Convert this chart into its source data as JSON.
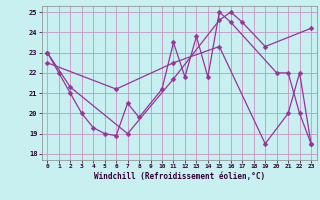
{
  "xlabel": "Windchill (Refroidissement éolien,°C)",
  "background_color": "#c8f0f0",
  "grid_color": "#c8a0c8",
  "line_color": "#993399",
  "x_min": 0,
  "x_max": 23,
  "y_min": 18,
  "y_max": 25,
  "line1_x": [
    0,
    1,
    2,
    3,
    4,
    5,
    6,
    7,
    8,
    10,
    11,
    12,
    13,
    14,
    15,
    16,
    20,
    21,
    22,
    23
  ],
  "line1_y": [
    23,
    22,
    21,
    20,
    19.3,
    19.0,
    18.9,
    20.5,
    19.8,
    21.2,
    23.5,
    21.8,
    23.8,
    21.8,
    25.0,
    24.5,
    22.0,
    22.0,
    20.0,
    18.5
  ],
  "line2_x": [
    0,
    2,
    7,
    11,
    15,
    16,
    17,
    19,
    23
  ],
  "line2_y": [
    23,
    21.3,
    19.0,
    21.7,
    24.6,
    25.0,
    24.5,
    23.3,
    24.2
  ],
  "line3_x": [
    0,
    6,
    11,
    15,
    19,
    21,
    22,
    23
  ],
  "line3_y": [
    22.5,
    21.2,
    22.5,
    23.3,
    18.5,
    20.0,
    22.0,
    18.5
  ],
  "yticks": [
    18,
    19,
    20,
    21,
    22,
    23,
    24,
    25
  ],
  "xticks": [
    0,
    1,
    2,
    3,
    4,
    5,
    6,
    7,
    8,
    9,
    10,
    11,
    12,
    13,
    14,
    15,
    16,
    17,
    18,
    19,
    20,
    21,
    22,
    23
  ]
}
